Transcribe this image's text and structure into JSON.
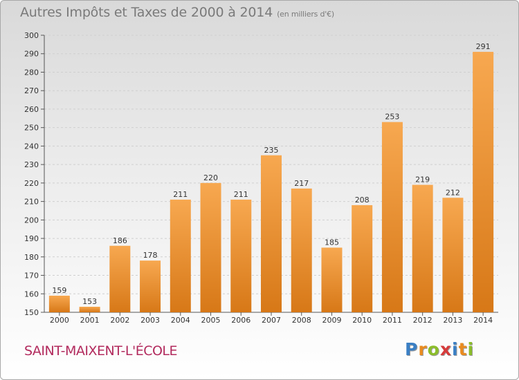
{
  "title": "Autres Impôts et Taxes de 2000 à 2014",
  "subtitle": "(en milliers d'€)",
  "commune": "SAINT-MAIXENT-L'ÉCOLE",
  "logo": {
    "letters": [
      "P",
      "r",
      "o",
      "x",
      "i",
      "t",
      "i"
    ],
    "colors": [
      "#3a7fc4",
      "#e98b1f",
      "#8bbd2a",
      "#d63a3a",
      "#3a7fc4",
      "#e98b1f",
      "#8bbd2a"
    ]
  },
  "colors": {
    "bar_light": "#f7a850",
    "bar_dark": "#d77817",
    "grid": "#cfcfcf"
  },
  "chart_data": {
    "type": "bar",
    "title": "Autres Impôts et Taxes de 2000 à 2014",
    "subtitle": "(en milliers d'€)",
    "categories": [
      "2000",
      "2001",
      "2002",
      "2003",
      "2004",
      "2005",
      "2006",
      "2007",
      "2008",
      "2009",
      "2010",
      "2011",
      "2012",
      "2013",
      "2014"
    ],
    "values": [
      159,
      153,
      186,
      178,
      211,
      220,
      211,
      235,
      217,
      185,
      208,
      253,
      219,
      212,
      291
    ],
    "ylim": [
      150,
      300
    ],
    "yticks": [
      150,
      160,
      170,
      180,
      190,
      200,
      210,
      220,
      230,
      240,
      250,
      260,
      270,
      280,
      290,
      300
    ],
    "grid": true,
    "legend": "none"
  }
}
